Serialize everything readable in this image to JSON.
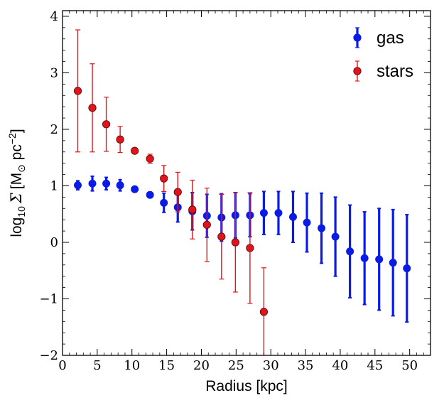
{
  "chart_data": {
    "type": "scatter",
    "xlabel": "Radius [kpc]",
    "ylabel_parts": {
      "log": "log",
      "log_sub": "10",
      "sigma": "Σ",
      "bracket_open": "[M",
      "sun": "⊙",
      "unit": " pc",
      "exp": "−2",
      "bracket_close": "]"
    },
    "xlim": [
      0,
      53
    ],
    "ylim": [
      -2,
      4.1
    ],
    "xticks": [
      0,
      5,
      10,
      15,
      20,
      25,
      30,
      35,
      40,
      45,
      50
    ],
    "xtick_labels": [
      "0",
      "5",
      "10",
      "15",
      "20",
      "25",
      "30",
      "35",
      "40",
      "45",
      "50"
    ],
    "yticks": [
      -2,
      -1,
      0,
      1,
      2,
      3,
      4
    ],
    "ytick_labels": [
      "−2",
      "−1",
      "0",
      "1",
      "2",
      "3",
      "4"
    ],
    "grid": false,
    "legend_position": "top-right",
    "series": [
      {
        "name": "gas",
        "color": "#0b1be6",
        "x": [
          2.2,
          4.3,
          6.3,
          8.3,
          10.4,
          12.6,
          14.6,
          16.6,
          18.7,
          20.8,
          22.9,
          24.9,
          27.0,
          29.0,
          31.1,
          33.2,
          35.2,
          37.3,
          39.3,
          41.4,
          43.5,
          45.6,
          47.6,
          49.6
        ],
        "y": [
          1.01,
          1.04,
          1.04,
          1.01,
          0.94,
          0.84,
          0.7,
          0.62,
          0.55,
          0.47,
          0.44,
          0.48,
          0.48,
          0.52,
          0.52,
          0.45,
          0.35,
          0.25,
          0.1,
          -0.16,
          -0.28,
          -0.3,
          -0.36,
          -0.46
        ],
        "yerr": [
          0.08,
          0.13,
          0.11,
          0.1,
          0.05,
          0.05,
          0.17,
          0.26,
          0.33,
          0.38,
          0.42,
          0.4,
          0.38,
          0.38,
          0.38,
          0.45,
          0.52,
          0.62,
          0.7,
          0.82,
          0.82,
          0.9,
          0.94,
          0.95
        ]
      },
      {
        "name": "stars",
        "color": "#e0141c",
        "x": [
          2.2,
          4.3,
          6.3,
          8.3,
          10.4,
          12.6,
          14.6,
          16.6,
          18.7,
          20.8,
          22.9,
          24.9,
          27.0,
          29.0
        ],
        "y": [
          2.68,
          2.38,
          2.09,
          1.82,
          1.62,
          1.48,
          1.13,
          0.89,
          0.58,
          0.31,
          0.1,
          0.0,
          -0.1,
          -1.23
        ],
        "yerr": [
          1.08,
          0.78,
          0.48,
          0.23,
          0.03,
          0.08,
          0.23,
          0.35,
          0.52,
          0.65,
          0.75,
          0.88,
          0.98,
          0.78
        ]
      }
    ]
  }
}
